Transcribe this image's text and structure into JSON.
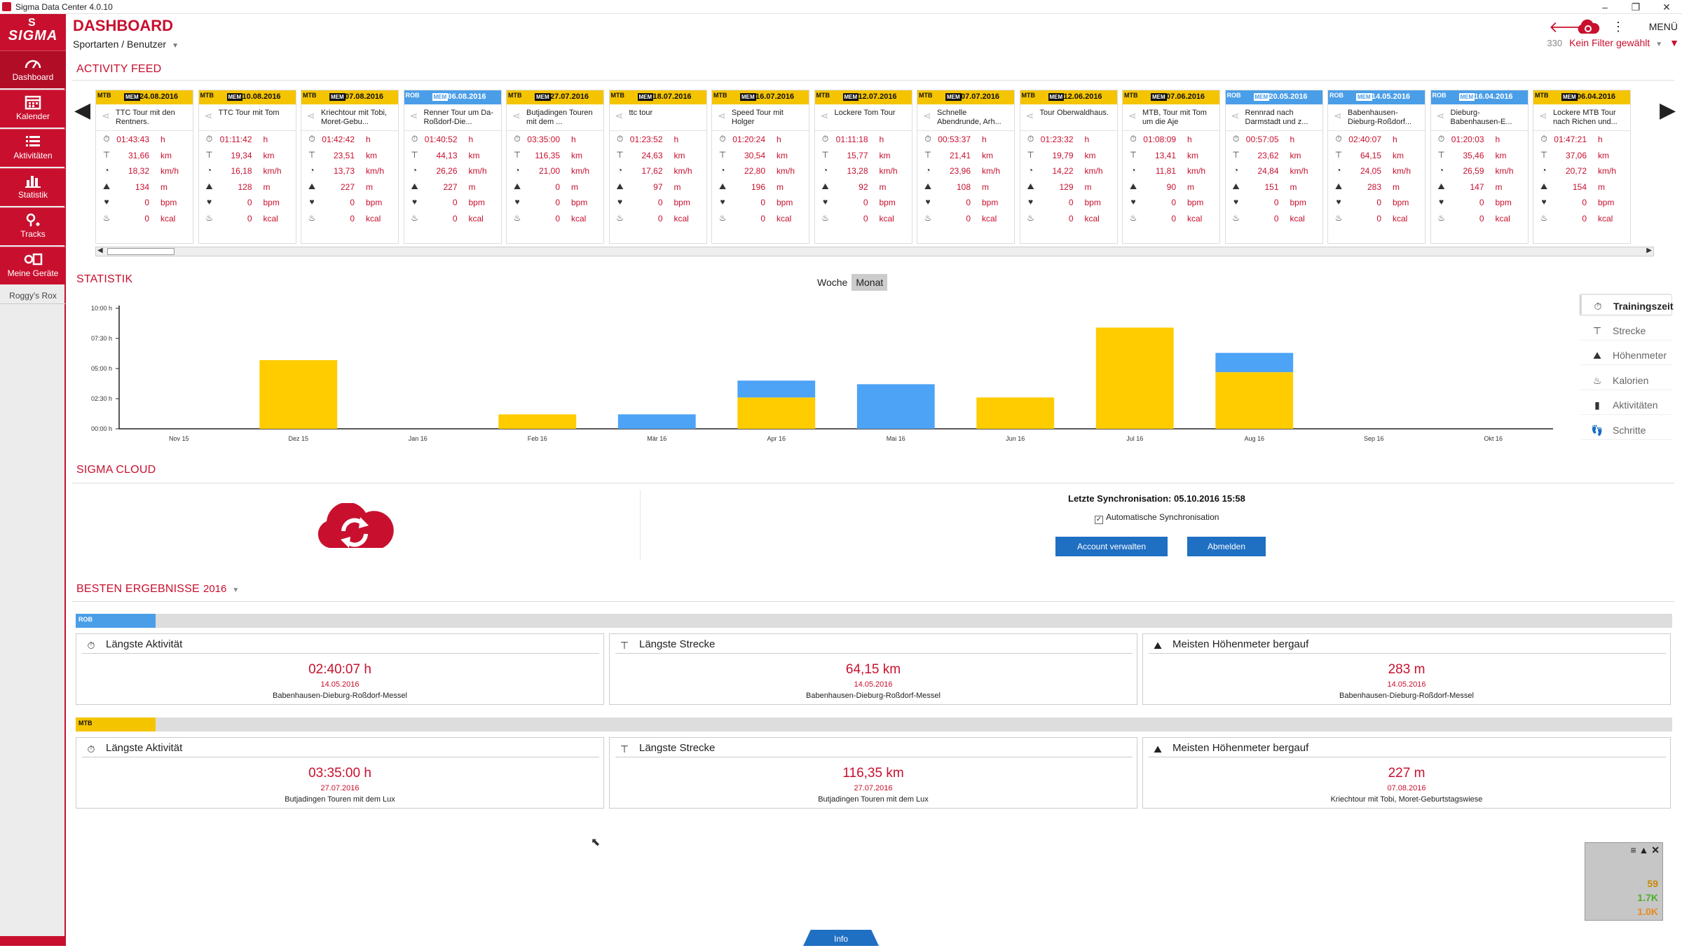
{
  "window": {
    "title": "Sigma Data Center 4.0.10",
    "minimize": "–",
    "maximize": "❐",
    "close": "✕"
  },
  "brand": {
    "logo_text": "SIGMA",
    "primary_color": "#c8102e"
  },
  "sidebar": {
    "items": [
      {
        "label": "Dashboard",
        "icon": "speedometer-icon"
      },
      {
        "label": "Kalender",
        "icon": "calendar-icon"
      },
      {
        "label": "Aktivitäten",
        "icon": "list-icon"
      },
      {
        "label": "Statistik",
        "icon": "bar-chart-icon"
      },
      {
        "label": "Tracks",
        "icon": "map-pin-icon"
      },
      {
        "label": "Meine Geräte",
        "icon": "devices-icon"
      }
    ],
    "user": "Roggy's Rox"
  },
  "header": {
    "title": "DASHBOARD",
    "breadcrumb": "Sportarten / Benutzer",
    "menu_label": "MENÜ",
    "count": "330",
    "filter_label": "Kein Filter gewählt"
  },
  "activity_feed": {
    "title": "ACTIVITY FEED",
    "units": {
      "time": "h",
      "distance": "km",
      "speed": "km/h",
      "altitude": "m",
      "heart": "bpm",
      "calories": "kcal"
    },
    "cards": [
      {
        "sport": "MTB",
        "type": "mtb",
        "mem": "MEM",
        "date": "24.08.2016",
        "name": "TTC Tour mit den Rentners.",
        "time": "01:43:43",
        "distance": "31,66",
        "speed": "18,32",
        "altitude": "134",
        "heart": "0",
        "calories": "0"
      },
      {
        "sport": "MTB",
        "type": "mtb",
        "mem": "MEM",
        "date": "10.08.2016",
        "name": "TTC Tour mit Tom",
        "time": "01:11:42",
        "distance": "19,34",
        "speed": "16,18",
        "altitude": "128",
        "heart": "0",
        "calories": "0"
      },
      {
        "sport": "MTB",
        "type": "mtb",
        "mem": "MEM",
        "date": "07.08.2016",
        "name": "Kriechtour mit Tobi, Moret-Gebu...",
        "time": "01:42:42",
        "distance": "23,51",
        "speed": "13,73",
        "altitude": "227",
        "heart": "0",
        "calories": "0"
      },
      {
        "sport": "ROB",
        "type": "rr",
        "mem": "MEM",
        "date": "06.08.2016",
        "name": "Renner Tour um Da-Roßdorf-Die...",
        "time": "01:40:52",
        "distance": "44,13",
        "speed": "26,26",
        "altitude": "227",
        "heart": "0",
        "calories": "0"
      },
      {
        "sport": "MTB",
        "type": "mtb",
        "mem": "MEM",
        "date": "27.07.2016",
        "name": "Butjadingen Touren mit dem ...",
        "time": "03:35:00",
        "distance": "116,35",
        "speed": "21,00",
        "altitude": "0",
        "heart": "0",
        "calories": "0"
      },
      {
        "sport": "MTB",
        "type": "mtb",
        "mem": "MEM",
        "date": "18.07.2016",
        "name": "ttc tour",
        "time": "01:23:52",
        "distance": "24,63",
        "speed": "17,62",
        "altitude": "97",
        "heart": "0",
        "calories": "0"
      },
      {
        "sport": "MTB",
        "type": "mtb",
        "mem": "MEM",
        "date": "16.07.2016",
        "name": "Speed Tour mit Holger",
        "time": "01:20:24",
        "distance": "30,54",
        "speed": "22,80",
        "altitude": "196",
        "heart": "0",
        "calories": "0"
      },
      {
        "sport": "MTB",
        "type": "mtb",
        "mem": "MEM",
        "date": "12.07.2016",
        "name": "Lockere Tom Tour",
        "time": "01:11:18",
        "distance": "15,77",
        "speed": "13,28",
        "altitude": "92",
        "heart": "0",
        "calories": "0"
      },
      {
        "sport": "MTB",
        "type": "mtb",
        "mem": "MEM",
        "date": "07.07.2016",
        "name": "Schnelle Abendrunde, Arh...",
        "time": "00:53:37",
        "distance": "21,41",
        "speed": "23,96",
        "altitude": "108",
        "heart": "0",
        "calories": "0"
      },
      {
        "sport": "MTB",
        "type": "mtb",
        "mem": "MEM",
        "date": "12.06.2016",
        "name": "Tour Oberwaldhaus.",
        "time": "01:23:32",
        "distance": "19,79",
        "speed": "14,22",
        "altitude": "129",
        "heart": "0",
        "calories": "0"
      },
      {
        "sport": "MTB",
        "type": "mtb",
        "mem": "MEM",
        "date": "07.06.2016",
        "name": "MTB, Tour mit Tom um die Aje",
        "time": "01:08:09",
        "distance": "13,41",
        "speed": "11,81",
        "altitude": "90",
        "heart": "0",
        "calories": "0"
      },
      {
        "sport": "ROB",
        "type": "rr",
        "mem": "MEM",
        "date": "20.05.2016",
        "name": "Rennrad nach Darmstadt und z...",
        "time": "00:57:05",
        "distance": "23,62",
        "speed": "24,84",
        "altitude": "151",
        "heart": "0",
        "calories": "0"
      },
      {
        "sport": "ROB",
        "type": "rr",
        "mem": "MEM",
        "date": "14.05.2016",
        "name": "Babenhausen-Dieburg-Roßdorf...",
        "time": "02:40:07",
        "distance": "64,15",
        "speed": "24,05",
        "altitude": "283",
        "heart": "0",
        "calories": "0"
      },
      {
        "sport": "ROB",
        "type": "rr",
        "mem": "MEM",
        "date": "16.04.2016",
        "name": "Dieburg-Babenhausen-E...",
        "time": "01:20:03",
        "distance": "35,46",
        "speed": "26,59",
        "altitude": "147",
        "heart": "0",
        "calories": "0"
      },
      {
        "sport": "MTB",
        "type": "mtb",
        "mem": "MEM",
        "date": "06.04.2016",
        "name": "Lockere MTB Tour nach Richen und...",
        "time": "01:47:21",
        "distance": "37,06",
        "speed": "20,72",
        "altitude": "154",
        "heart": "0",
        "calories": "0"
      }
    ]
  },
  "statistik": {
    "title": "STATISTIK",
    "tabs": [
      "Woche",
      "Monat"
    ],
    "active_tab": "Monat",
    "metrics": [
      {
        "label": "Trainingszeit",
        "icon": "clock-icon",
        "active": true
      },
      {
        "label": "Strecke",
        "icon": "road-icon",
        "active": false
      },
      {
        "label": "Höhenmeter",
        "icon": "mountain-icon",
        "active": false
      },
      {
        "label": "Kalorien",
        "icon": "flame-icon",
        "active": false
      },
      {
        "label": "Aktivitäten",
        "icon": "bars-icon",
        "active": false
      },
      {
        "label": "Schritte",
        "icon": "steps-icon",
        "active": false
      }
    ]
  },
  "chart_data": {
    "type": "bar",
    "stacked": true,
    "categories": [
      "Nov 15",
      "Dez 15",
      "Jan 16",
      "Feb 16",
      "Mär 16",
      "Apr 16",
      "Mai 16",
      "Jun 16",
      "Jul 16",
      "Aug 16",
      "Sep 16",
      "Okt 16"
    ],
    "y_ticks": [
      "00:00 h",
      "02:30 h",
      "05:00 h",
      "07:30 h",
      "10:00 h"
    ],
    "ylim": [
      0,
      10
    ],
    "series": [
      {
        "color": "#ffcc00",
        "values": [
          0,
          5.7,
          0,
          1.2,
          0,
          2.6,
          0,
          2.6,
          8.4,
          4.7,
          0,
          0
        ]
      },
      {
        "color": "#4da3f5",
        "values": [
          0,
          0,
          0,
          0,
          1.2,
          1.4,
          3.7,
          0,
          0,
          1.6,
          0,
          0
        ]
      }
    ],
    "grid": false
  },
  "cloud": {
    "title": "SIGMA CLOUD",
    "last_sync": "Letzte Synchronisation: 05.10.2016 15:58",
    "auto_sync": "Automatische Synchronisation",
    "auto_sync_checked": "✓",
    "manage_button": "Account verwalten",
    "logout_button": "Abmelden"
  },
  "best": {
    "title": "BESTEN ERGEBNISSE",
    "year": "2016",
    "groups": [
      {
        "sport": "ROB",
        "color": "#4a9ee8",
        "records": [
          {
            "label": "Längste Aktivität",
            "icon": "clock-icon",
            "value": "02:40:07 h",
            "date": "14.05.2016",
            "name": "Babenhausen-Dieburg-Roßdorf-Messel"
          },
          {
            "label": "Längste Strecke",
            "icon": "road-icon",
            "value": "64,15 km",
            "date": "14.05.2016",
            "name": "Babenhausen-Dieburg-Roßdorf-Messel"
          },
          {
            "label": "Meisten Höhenmeter bergauf",
            "icon": "mountain-icon",
            "value": "283 m",
            "date": "14.05.2016",
            "name": "Babenhausen-Dieburg-Roßdorf-Messel"
          }
        ]
      },
      {
        "sport": "MTB",
        "color": "#f5c400",
        "records": [
          {
            "label": "Längste Aktivität",
            "icon": "clock-icon",
            "value": "03:35:00 h",
            "date": "27.07.2016",
            "name": "Butjadingen Touren mit dem Lux"
          },
          {
            "label": "Längste Strecke",
            "icon": "road-icon",
            "value": "116,35 km",
            "date": "27.07.2016",
            "name": "Butjadingen Touren mit dem Lux"
          },
          {
            "label": "Meisten Höhenmeter bergauf",
            "icon": "mountain-icon",
            "value": "227 m",
            "date": "07.08.2016",
            "name": "Kriechtour mit Tobi, Moret-Geburtstagswiese"
          }
        ]
      }
    ]
  },
  "perf_widget": {
    "v1": "59",
    "v2": "1.7K",
    "v3": "1.0K",
    "menu": "≡ ▲ ✕"
  },
  "info_tab": "Info"
}
